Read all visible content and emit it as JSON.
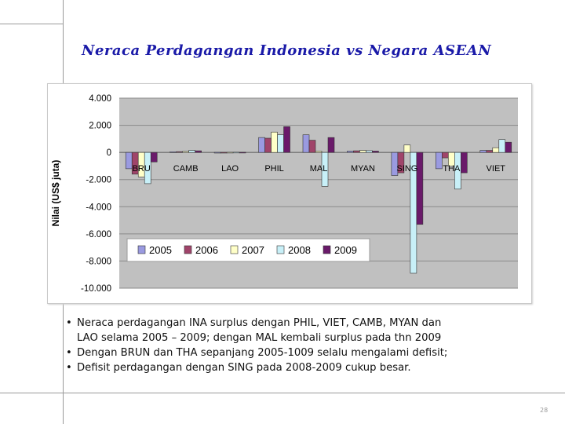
{
  "slide": {
    "title": "Neraca Perdagangan Indonesia vs Negara ASEAN",
    "page_number": "28",
    "bullets": [
      "Neraca perdagangan INA surplus dengan PHIL, VIET, CAMB, MYAN dan",
      "LAO selama 2005 – 2009; dengan MAL kembali surplus pada thn 2009",
      "Dengan BRUN dan THA sepanjang 2005-1009 selalu mengalami defisit;",
      "Defisit perdagangan dengan SING pada 2008-2009 cukup besar."
    ]
  },
  "chart_data": {
    "type": "bar",
    "ylabel": "Nilai (US$ juta)",
    "ylim": [
      -10000,
      4000
    ],
    "yticks": [
      "4.000",
      "2.000",
      "0",
      "-2.000",
      "-4.000",
      "-6.000",
      "-8.000",
      "-10.000"
    ],
    "ytick_values": [
      4000,
      2000,
      0,
      -2000,
      -4000,
      -6000,
      -8000,
      -10000
    ],
    "grid": true,
    "legend_placement": "bottom",
    "categories": [
      "BRU",
      "CAMB",
      "LAO",
      "PHIL",
      "MAL",
      "MYAN",
      "SING",
      "THA",
      "VIET"
    ],
    "series": [
      {
        "name": "2005",
        "color": "#9a9ae0",
        "values": [
          -1200,
          50,
          10,
          1100,
          1300,
          100,
          -1700,
          -1200,
          150
        ]
      },
      {
        "name": "2006",
        "color": "#a0446a",
        "values": [
          -1600,
          60,
          10,
          1050,
          900,
          120,
          -1500,
          -400,
          150
        ]
      },
      {
        "name": "2007",
        "color": "#ffffc8",
        "values": [
          -1800,
          80,
          15,
          1500,
          100,
          150,
          550,
          -1000,
          350
        ]
      },
      {
        "name": "2008",
        "color": "#c8f0f8",
        "values": [
          -2300,
          150,
          20,
          1300,
          -2500,
          130,
          -8900,
          -2700,
          950
        ]
      },
      {
        "name": "2009",
        "color": "#6a1a6a",
        "values": [
          -700,
          120,
          15,
          1900,
          1100,
          100,
          -5300,
          -1500,
          750
        ]
      }
    ]
  }
}
